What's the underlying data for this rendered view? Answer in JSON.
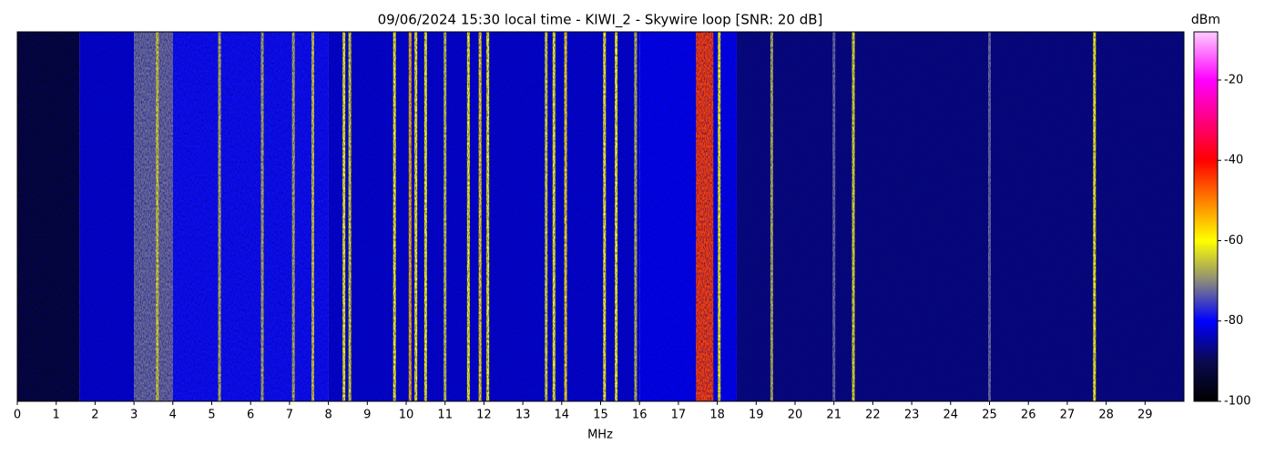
{
  "chart_data": {
    "type": "heatmap",
    "title": "09/06/2024 15:30 local time - KIWI_2 - Skywire loop [SNR: 20 dB]",
    "xlabel": "MHz",
    "xlim": [
      0,
      30
    ],
    "xticks": [
      0,
      1,
      2,
      3,
      4,
      5,
      6,
      7,
      8,
      9,
      10,
      11,
      12,
      13,
      14,
      15,
      16,
      17,
      18,
      19,
      20,
      21,
      22,
      23,
      24,
      25,
      26,
      27,
      28,
      29
    ],
    "colorbar": {
      "label": "dBm",
      "lim": [
        -100,
        -8
      ],
      "ticks": [
        -20,
        -40,
        -60,
        -80,
        -100
      ]
    },
    "colormap": [
      {
        "value": -100,
        "color": "#000000"
      },
      {
        "value": -90,
        "color": "#0a0a50"
      },
      {
        "value": -80,
        "color": "#0000ff"
      },
      {
        "value": -70,
        "color": "#8a8a7a"
      },
      {
        "value": -60,
        "color": "#ffff00"
      },
      {
        "value": -40,
        "color": "#ff0000"
      },
      {
        "value": -20,
        "color": "#ff00ff"
      },
      {
        "value": -8,
        "color": "#ffccff"
      }
    ],
    "bands": [
      {
        "x": [
          0,
          1.6
        ],
        "dbm": -95
      },
      {
        "x": [
          1.6,
          3.0
        ],
        "dbm": -83
      },
      {
        "x": [
          3.0,
          4.0
        ],
        "dbm": -72
      },
      {
        "x": [
          4.0,
          8.0
        ],
        "dbm": -79
      },
      {
        "x": [
          8.0,
          16.0
        ],
        "dbm": -83
      },
      {
        "x": [
          16.0,
          18.5
        ],
        "dbm": -81
      },
      {
        "x": [
          18.5,
          30
        ],
        "dbm": -88
      },
      {
        "x": [
          17.45,
          17.9
        ],
        "dbm": -45
      }
    ],
    "signals": [
      {
        "mhz": 3.6,
        "dbm": -63
      },
      {
        "mhz": 5.2,
        "dbm": -65
      },
      {
        "mhz": 6.3,
        "dbm": -66
      },
      {
        "mhz": 7.1,
        "dbm": -66
      },
      {
        "mhz": 7.6,
        "dbm": -64
      },
      {
        "mhz": 8.4,
        "dbm": -60
      },
      {
        "mhz": 8.55,
        "dbm": -62
      },
      {
        "mhz": 9.7,
        "dbm": -60
      },
      {
        "mhz": 10.1,
        "dbm": -55
      },
      {
        "mhz": 10.25,
        "dbm": -60
      },
      {
        "mhz": 10.5,
        "dbm": -60
      },
      {
        "mhz": 11.0,
        "dbm": -64
      },
      {
        "mhz": 11.6,
        "dbm": -60
      },
      {
        "mhz": 11.9,
        "dbm": -58
      },
      {
        "mhz": 12.1,
        "dbm": -60
      },
      {
        "mhz": 13.6,
        "dbm": -62
      },
      {
        "mhz": 13.8,
        "dbm": -60
      },
      {
        "mhz": 14.1,
        "dbm": -58
      },
      {
        "mhz": 15.1,
        "dbm": -60
      },
      {
        "mhz": 15.4,
        "dbm": -60
      },
      {
        "mhz": 15.9,
        "dbm": -65
      },
      {
        "mhz": 18.05,
        "dbm": -60
      },
      {
        "mhz": 19.4,
        "dbm": -66
      },
      {
        "mhz": 21.0,
        "dbm": -72
      },
      {
        "mhz": 21.5,
        "dbm": -62
      },
      {
        "mhz": 25.0,
        "dbm": -72
      },
      {
        "mhz": 27.7,
        "dbm": -60
      }
    ]
  }
}
